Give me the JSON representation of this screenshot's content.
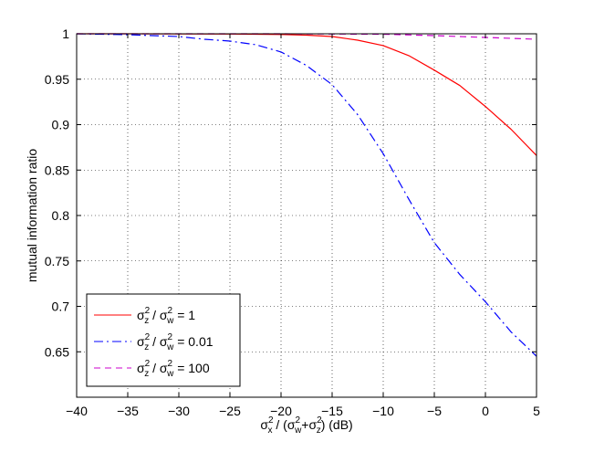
{
  "chart_data": {
    "type": "line",
    "xlabel_parts": {
      "sigma_x": "σ",
      "sub_x": "x",
      "sup_x": "2",
      "sep": " / (",
      "sigma_w": "σ",
      "sub_w": "w",
      "sup_w": "2",
      "plus": "+",
      "sigma_z": "σ",
      "sub_z": "z",
      "sup_z": "2",
      "tail": ") (dB)"
    },
    "ylabel": "mutual information ratio",
    "xlim": [
      -40,
      5
    ],
    "ylim": [
      0.6,
      1.0
    ],
    "xticks": [
      -40,
      -35,
      -30,
      -25,
      -20,
      -15,
      -10,
      -5,
      0,
      5
    ],
    "xtick_labels": [
      "−40",
      "−35",
      "−30",
      "−25",
      "−20",
      "−15",
      "−10",
      "−5",
      "0",
      "5"
    ],
    "yticks": [
      0.65,
      0.7,
      0.75,
      0.8,
      0.85,
      0.9,
      0.95,
      1.0
    ],
    "ytick_labels": [
      "0.65",
      "0.7",
      "0.75",
      "0.8",
      "0.85",
      "0.9",
      "0.95",
      "1"
    ],
    "grid": true,
    "legend_position": "bottom-left",
    "series": [
      {
        "legend": {
          "sigma1": "σ",
          "sub1": "z",
          "sup1": "2",
          "sep": " / ",
          "sigma2": "σ",
          "sub2": "w",
          "sup2": "2",
          "value": " = 1"
        },
        "color": "#ff0000",
        "dash": "",
        "x": [
          -40,
          -35,
          -30,
          -25,
          -20,
          -17.5,
          -15,
          -12.5,
          -10,
          -7.5,
          -5,
          -2.5,
          0,
          2.5,
          5
        ],
        "y": [
          1.0,
          1.0,
          0.9999,
          0.9997,
          0.9992,
          0.9985,
          0.997,
          0.993,
          0.987,
          0.976,
          0.96,
          0.943,
          0.92,
          0.895,
          0.866
        ]
      },
      {
        "legend": {
          "sigma1": "σ",
          "sub1": "z",
          "sup1": "2",
          "sep": " / ",
          "sigma2": "σ",
          "sub2": "w",
          "sup2": "2",
          "value": " = 0.01"
        },
        "color": "#0000ff",
        "dash": "10,4,2,4",
        "x": [
          -40,
          -35,
          -30,
          -27.5,
          -25,
          -22.5,
          -20,
          -17.5,
          -15,
          -12.5,
          -10,
          -7.5,
          -5,
          -2.5,
          0,
          2.5,
          5
        ],
        "y": [
          1.0,
          0.999,
          0.997,
          0.994,
          0.992,
          0.988,
          0.98,
          0.965,
          0.944,
          0.911,
          0.868,
          0.818,
          0.77,
          0.735,
          0.705,
          0.672,
          0.645
        ]
      },
      {
        "legend": {
          "sigma1": "σ",
          "sub1": "z",
          "sup1": "2",
          "sep": " / ",
          "sigma2": "σ",
          "sub2": "w",
          "sup2": "2",
          "value": " = 100"
        },
        "color": "#cc00cc",
        "dash": "7,5",
        "x": [
          -40,
          -30,
          -20,
          -10,
          -5,
          0,
          5
        ],
        "y": [
          1.0,
          1.0,
          1.0,
          0.9995,
          0.998,
          0.996,
          0.994
        ]
      }
    ]
  }
}
